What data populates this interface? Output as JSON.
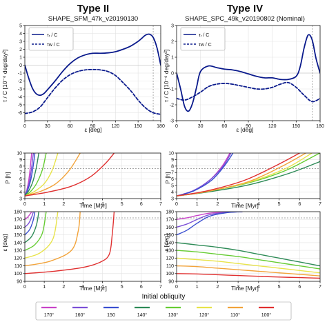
{
  "header": {
    "left_type": "Type II",
    "left_shape": "SHAPE_SFM_47k_v20190130",
    "right_type": "Type IV",
    "right_shape": "SHAPE_SPC_49k_v20190802 (Nominal)"
  },
  "labels": {
    "torque_ylabel": "τ / C [10⁻⁶ deg/day²]",
    "torque_xlabel": "ε [deg]",
    "legend_r": "τᵣ / C",
    "legend_w": "τw / C",
    "period_ylabel": "P [h]",
    "obl_ylabel": "ε [deg]",
    "time_xlabel": "Time [Myr]"
  },
  "legend_bottom": {
    "title": "Initial obliquity",
    "entries": [
      {
        "label": "170°",
        "color": "#c843c8"
      },
      {
        "label": "160°",
        "color": "#7b4fd6"
      },
      {
        "label": "150",
        "color": "#3a4fd0"
      },
      {
        "label": "140°",
        "color": "#2e8b57"
      },
      {
        "label": "130°",
        "color": "#66cc33"
      },
      {
        "label": "120°",
        "color": "#e8e34a"
      },
      {
        "label": "110°",
        "color": "#f2a33a"
      },
      {
        "label": "100°",
        "color": "#e03030"
      }
    ]
  },
  "chart_data": [
    {
      "id": "torque_left",
      "type": "line",
      "xlim": [
        0,
        180
      ],
      "ylim": [
        -7,
        5
      ],
      "xticks": [
        0,
        30,
        60,
        90,
        120,
        150,
        180
      ],
      "yticks": [
        -6,
        -5,
        -4,
        -3,
        -2,
        -1,
        0,
        1,
        2,
        3,
        4,
        5
      ],
      "vline": 170,
      "series": [
        {
          "name": "τr / C",
          "dash": false,
          "x": [
            0,
            5,
            10,
            15,
            20,
            25,
            30,
            40,
            50,
            60,
            70,
            80,
            90,
            100,
            110,
            120,
            130,
            140,
            150,
            155,
            160,
            165,
            170,
            175,
            180
          ],
          "y": [
            0,
            -1.6,
            -2.9,
            -3.6,
            -3.8,
            -3.6,
            -3.1,
            -2.0,
            -0.8,
            0.2,
            0.9,
            1.3,
            1.5,
            1.5,
            1.55,
            1.7,
            2.0,
            2.4,
            3.0,
            3.4,
            3.8,
            3.9,
            3.5,
            2.2,
            0
          ]
        },
        {
          "name": "τw / C",
          "dash": true,
          "x": [
            0,
            10,
            20,
            30,
            40,
            50,
            60,
            70,
            80,
            90,
            100,
            110,
            120,
            130,
            140,
            150,
            160,
            170,
            180
          ],
          "y": [
            -6.1,
            -5.9,
            -5.3,
            -4.1,
            -2.9,
            -1.9,
            -1.2,
            -0.8,
            -0.6,
            -0.55,
            -0.6,
            -0.8,
            -1.3,
            -2.2,
            -3.2,
            -4.4,
            -5.4,
            -6.0,
            -6.2
          ]
        }
      ]
    },
    {
      "id": "torque_right",
      "type": "line",
      "xlim": [
        0,
        180
      ],
      "ylim": [
        -3,
        3
      ],
      "xticks": [
        0,
        30,
        60,
        90,
        120,
        150,
        180
      ],
      "yticks": [
        -3,
        -2,
        -1,
        0,
        1,
        2,
        3
      ],
      "vline": 170,
      "series": [
        {
          "name": "τr / C",
          "dash": false,
          "x": [
            0,
            5,
            10,
            15,
            20,
            25,
            30,
            40,
            50,
            60,
            70,
            80,
            90,
            100,
            110,
            120,
            130,
            140,
            150,
            155,
            160,
            165,
            170,
            175,
            180
          ],
          "y": [
            0,
            -1.0,
            -2.1,
            -2.4,
            -1.9,
            -0.9,
            0.1,
            0.45,
            0.35,
            0.25,
            0.2,
            0.1,
            -0.05,
            -0.2,
            -0.3,
            -0.3,
            -0.4,
            -0.4,
            -0.2,
            0.4,
            1.6,
            2.4,
            2.1,
            0.9,
            0
          ]
        },
        {
          "name": "τw / C",
          "dash": true,
          "x": [
            0,
            10,
            20,
            30,
            40,
            50,
            60,
            70,
            80,
            90,
            100,
            110,
            120,
            130,
            140,
            150,
            160,
            170,
            180
          ],
          "y": [
            -1.6,
            -1.7,
            -1.5,
            -1.2,
            -0.85,
            -0.7,
            -0.65,
            -0.7,
            -0.8,
            -0.9,
            -1.0,
            -1.0,
            -0.9,
            -0.7,
            -0.6,
            -0.9,
            -1.4,
            -1.8,
            -1.6
          ]
        }
      ]
    },
    {
      "id": "period_left",
      "type": "line",
      "xlim": [
        0,
        7
      ],
      "ylim": [
        3,
        10
      ],
      "xticks": [
        0,
        1,
        2,
        3,
        4,
        5,
        6,
        7
      ],
      "yticks": [
        3,
        4,
        5,
        6,
        7,
        8,
        9,
        10
      ],
      "hline": 7.63,
      "series": [
        {
          "name": "170°",
          "x": [
            0,
            0.1,
            0.2,
            0.28,
            0.35
          ],
          "y": [
            3.4,
            4.3,
            5.8,
            7.8,
            10
          ]
        },
        {
          "name": "160°",
          "x": [
            0,
            0.12,
            0.25,
            0.35,
            0.44
          ],
          "y": [
            3.4,
            4.3,
            5.8,
            7.8,
            10
          ]
        },
        {
          "name": "150",
          "x": [
            0,
            0.15,
            0.3,
            0.42,
            0.52
          ],
          "y": [
            3.4,
            4.3,
            5.8,
            7.8,
            10
          ]
        },
        {
          "name": "140°",
          "x": [
            0,
            0.2,
            0.4,
            0.58,
            0.72
          ],
          "y": [
            3.4,
            4.2,
            5.5,
            7.6,
            10
          ]
        },
        {
          "name": "130°",
          "x": [
            0,
            0.3,
            0.6,
            0.9,
            1.1
          ],
          "y": [
            3.4,
            4.1,
            5.3,
            7.4,
            10
          ]
        },
        {
          "name": "120°",
          "x": [
            0,
            0.5,
            1.0,
            1.4,
            1.7
          ],
          "y": [
            3.4,
            4.1,
            5.3,
            7.3,
            10
          ]
        },
        {
          "name": "110°",
          "x": [
            0,
            0.8,
            1.6,
            2.3,
            2.85
          ],
          "y": [
            3.4,
            4.1,
            5.3,
            7.4,
            10
          ]
        },
        {
          "name": "100°",
          "x": [
            0,
            1.2,
            2.4,
            3.4,
            4.15,
            4.6
          ],
          "y": [
            3.4,
            4.0,
            4.9,
            6.4,
            8.4,
            10
          ]
        }
      ]
    },
    {
      "id": "period_right",
      "type": "line",
      "xlim": [
        0,
        7
      ],
      "ylim": [
        3,
        10
      ],
      "xticks": [
        0,
        1,
        2,
        3,
        4,
        5,
        6,
        7
      ],
      "yticks": [
        3,
        4,
        5,
        6,
        7,
        8,
        9,
        10
      ],
      "hline": 7.63,
      "series": [
        {
          "name": "170°",
          "x": [
            0,
            0.8,
            1.6,
            2.2,
            2.6
          ],
          "y": [
            3.4,
            4.2,
            5.8,
            7.9,
            10
          ]
        },
        {
          "name": "160°",
          "x": [
            0,
            0.8,
            1.6,
            2.25,
            2.65
          ],
          "y": [
            3.4,
            4.2,
            5.8,
            7.9,
            10
          ]
        },
        {
          "name": "150",
          "x": [
            0,
            0.85,
            1.7,
            2.3,
            2.75
          ],
          "y": [
            3.4,
            4.2,
            5.8,
            7.9,
            10
          ]
        },
        {
          "name": "140°",
          "x": [
            0,
            1.5,
            3.5,
            5.5,
            7.0
          ],
          "y": [
            3.4,
            4.0,
            5.1,
            6.9,
            8.7
          ]
        },
        {
          "name": "130°",
          "x": [
            0,
            1.5,
            3.5,
            5.3,
            6.8,
            7.0
          ],
          "y": [
            3.4,
            4.1,
            5.4,
            7.3,
            9.7,
            10
          ]
        },
        {
          "name": "120°",
          "x": [
            0,
            1.5,
            3.5,
            5.3,
            6.6
          ],
          "y": [
            3.4,
            4.1,
            5.5,
            7.6,
            10
          ]
        },
        {
          "name": "110°",
          "x": [
            0,
            1.5,
            3.5,
            5.1,
            6.3
          ],
          "y": [
            3.4,
            4.1,
            5.6,
            7.9,
            10
          ]
        },
        {
          "name": "100°",
          "x": [
            0,
            1.5,
            3.3,
            4.8,
            6.0
          ],
          "y": [
            3.4,
            4.2,
            5.8,
            8.0,
            10
          ]
        }
      ]
    },
    {
      "id": "obl_left",
      "type": "line",
      "xlim": [
        0,
        7
      ],
      "ylim": [
        90,
        180
      ],
      "xticks": [
        0,
        1,
        2,
        3,
        4,
        5,
        6,
        7
      ],
      "yticks": [
        90,
        100,
        110,
        120,
        130,
        140,
        150,
        160,
        170,
        180
      ],
      "hline": 172,
      "series": [
        {
          "name": "170°",
          "x": [
            0,
            0.15,
            0.3,
            0.35
          ],
          "y": [
            170,
            173,
            178,
            180
          ]
        },
        {
          "name": "160°",
          "x": [
            0,
            0.2,
            0.35,
            0.44
          ],
          "y": [
            160,
            165,
            173,
            180
          ]
        },
        {
          "name": "150",
          "x": [
            0,
            0.25,
            0.42,
            0.52
          ],
          "y": [
            150,
            157,
            168,
            180
          ]
        },
        {
          "name": "140°",
          "x": [
            0,
            0.35,
            0.6,
            0.72
          ],
          "y": [
            140,
            148,
            163,
            180
          ]
        },
        {
          "name": "130°",
          "x": [
            0,
            0.5,
            0.9,
            1.1
          ],
          "y": [
            130,
            137,
            152,
            180
          ]
        },
        {
          "name": "120°",
          "x": [
            0,
            0.8,
            1.45,
            1.7
          ],
          "y": [
            120,
            127,
            145,
            180
          ]
        },
        {
          "name": "110°",
          "x": [
            0,
            1.3,
            2.4,
            2.75,
            2.85
          ],
          "y": [
            110,
            116,
            130,
            155,
            180
          ]
        },
        {
          "name": "100°",
          "x": [
            0,
            1.5,
            3.0,
            3.9,
            4.35,
            4.5,
            4.6
          ],
          "y": [
            100,
            103,
            108,
            115,
            125,
            150,
            180
          ]
        }
      ]
    },
    {
      "id": "obl_right",
      "type": "line",
      "xlim": [
        0,
        7
      ],
      "ylim": [
        90,
        180
      ],
      "xticks": [
        0,
        1,
        2,
        3,
        4,
        5,
        6,
        7
      ],
      "yticks": [
        90,
        100,
        110,
        120,
        130,
        140,
        150,
        160,
        170,
        180
      ],
      "hline": 172,
      "series": [
        {
          "name": "170°",
          "x": [
            0,
            0.5,
            1.0,
            1.6,
            2.4,
            3.2
          ],
          "y": [
            170,
            172,
            175,
            178,
            179.5,
            180
          ]
        },
        {
          "name": "160°",
          "x": [
            0,
            0.5,
            1.0,
            1.6,
            2.4,
            3.2
          ],
          "y": [
            160,
            164,
            170,
            176,
            179,
            180
          ]
        },
        {
          "name": "150",
          "x": [
            0,
            0.5,
            1.0,
            1.6,
            2.4,
            3.2
          ],
          "y": [
            150,
            156,
            165,
            174,
            178.5,
            180
          ]
        },
        {
          "name": "140°",
          "x": [
            0,
            1,
            2,
            3,
            4,
            5,
            6,
            7
          ],
          "y": [
            140,
            137,
            134,
            130,
            125,
            120,
            115,
            110
          ]
        },
        {
          "name": "130°",
          "x": [
            0,
            1,
            2,
            3,
            4,
            5,
            6,
            7
          ],
          "y": [
            130,
            128,
            125,
            122,
            118,
            114,
            110,
            106
          ]
        },
        {
          "name": "120°",
          "x": [
            0,
            1,
            2,
            3,
            4,
            5,
            6,
            7
          ],
          "y": [
            120,
            118,
            116,
            113,
            110,
            107,
            104,
            101
          ]
        },
        {
          "name": "110°",
          "x": [
            0,
            1,
            2,
            3,
            4,
            5,
            6,
            7
          ],
          "y": [
            110,
            109,
            107,
            105,
            103,
            101,
            99,
            97
          ]
        },
        {
          "name": "100°",
          "x": [
            0,
            1,
            2,
            3,
            4,
            5,
            6,
            7
          ],
          "y": [
            100,
            99.5,
            98.5,
            97.5,
            96.5,
            95.5,
            94.8,
            94
          ]
        }
      ]
    }
  ]
}
